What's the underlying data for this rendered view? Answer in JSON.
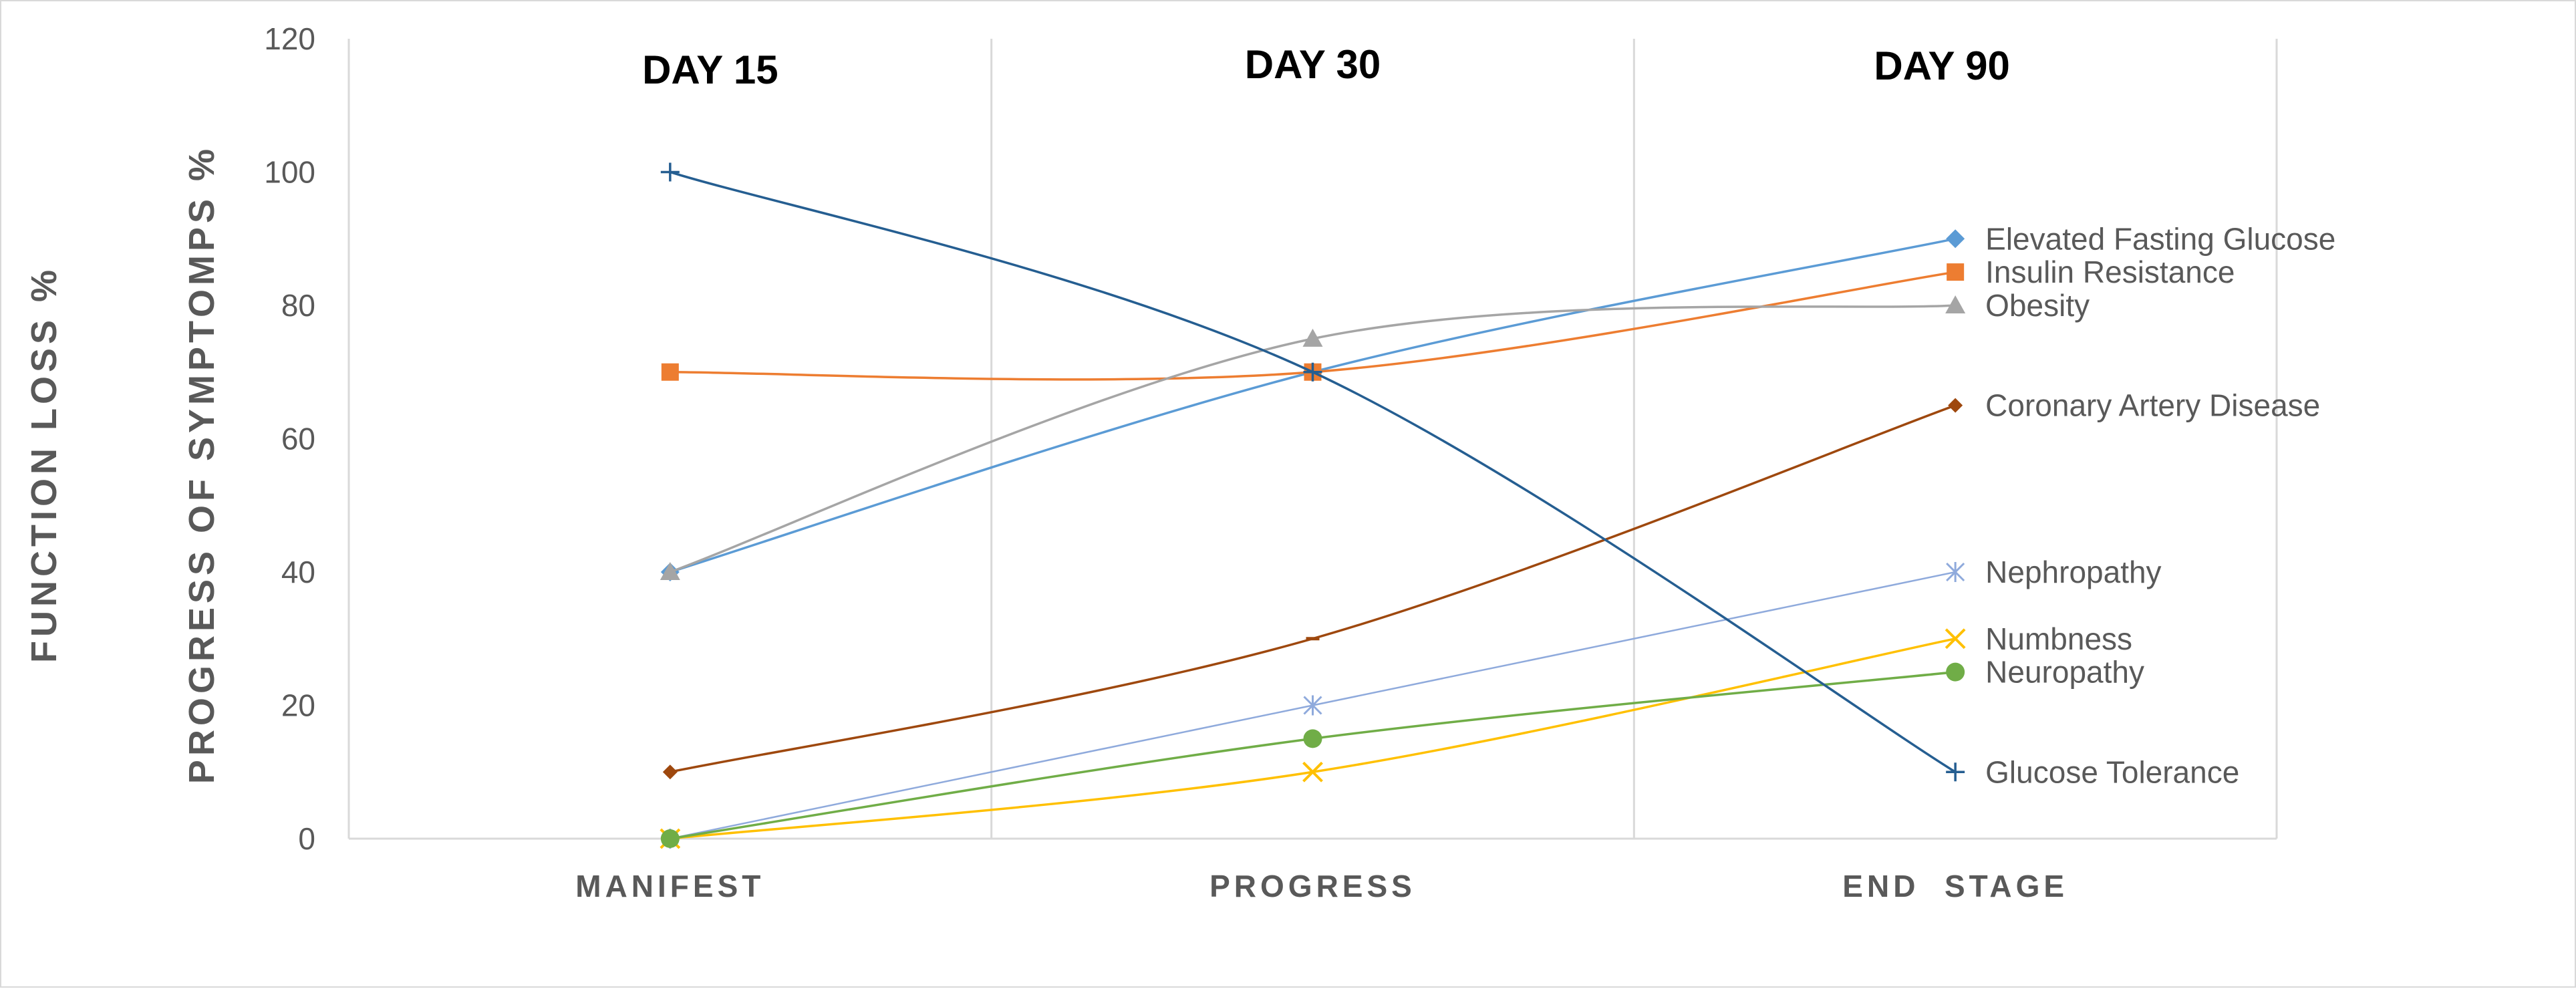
{
  "chart_data": {
    "type": "line",
    "categories": [
      "MANIFEST",
      "PROGRESS",
      "END  STAGE"
    ],
    "phase_labels": [
      "DAY 15",
      "DAY 30",
      "DAY 90"
    ],
    "ylabel_outer": "FUNCTION LOSS %",
    "ylabel_inner": "PROGRESS OF SYMPTOMPS %",
    "ylim": [
      0,
      120
    ],
    "yticks": [
      0,
      20,
      40,
      60,
      80,
      100,
      120
    ],
    "grid": "vertical",
    "legend": "right (end-of-line labels)",
    "series": [
      {
        "name": "Elevated Fasting Glucose",
        "values": [
          40,
          70,
          90
        ],
        "color": "#5b9bd5",
        "marker": "diamond",
        "label_y": 90
      },
      {
        "name": "Insulin Resistance",
        "values": [
          70,
          70,
          85
        ],
        "color": "#ed7d31",
        "marker": "square",
        "label_y": 85
      },
      {
        "name": "Obesity",
        "values": [
          40,
          75,
          80
        ],
        "color": "#a5a5a5",
        "marker": "triangle",
        "label_y": 80
      },
      {
        "name": "Coronary Artery Disease",
        "values": [
          10,
          30,
          65
        ],
        "color": "#9e480e",
        "marker": "diamond-small",
        "label_y": 65
      },
      {
        "name": "Nephropathy",
        "values": [
          0,
          20,
          40
        ],
        "color": "#8faadc",
        "marker": "star",
        "label_y": 40
      },
      {
        "name": "Numbness",
        "values": [
          0,
          10,
          30
        ],
        "color": "#ffc000",
        "marker": "x",
        "label_y": 30
      },
      {
        "name": "Neuropathy",
        "values": [
          0,
          15,
          25
        ],
        "color": "#70ad47",
        "marker": "circle",
        "label_y": 25
      },
      {
        "name": "Glucose Tolerance",
        "values": [
          100,
          70,
          10
        ],
        "color": "#255e91",
        "marker": "plus",
        "label_y": 10
      }
    ]
  }
}
